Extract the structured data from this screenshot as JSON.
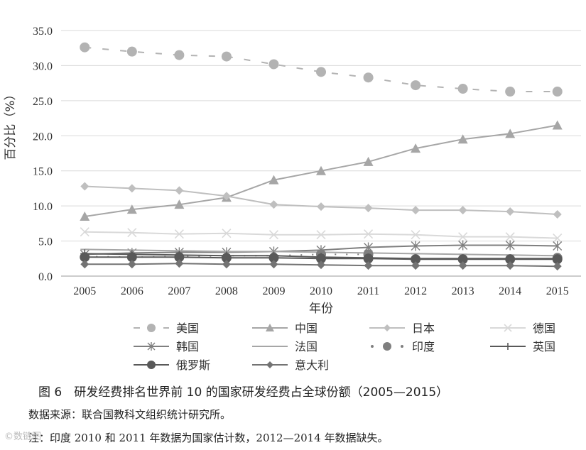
{
  "chart_data": {
    "type": "line",
    "ylabel": "百分比（%）",
    "xlabel": "年份",
    "ylim": [
      0,
      35
    ],
    "yticks": [
      "0.0",
      "5.0",
      "10.0",
      "15.0",
      "20.0",
      "25.0",
      "30.0",
      "35.0"
    ],
    "categories": [
      "2005",
      "2006",
      "2007",
      "2008",
      "2009",
      "2010",
      "2011",
      "2012",
      "2013",
      "2014",
      "2015"
    ],
    "legend_position": "bottom",
    "grid": "horizontal",
    "series": [
      {
        "name": "美国",
        "marker": "circle",
        "dash": "dash",
        "color": "#b3b3b3",
        "values": [
          32.6,
          32.0,
          31.5,
          31.3,
          30.2,
          29.1,
          28.3,
          27.2,
          26.7,
          26.3,
          26.3
        ]
      },
      {
        "name": "中国",
        "marker": "triangle",
        "dash": "solid",
        "color": "#a6a6a6",
        "values": [
          8.5,
          9.5,
          10.2,
          11.2,
          13.7,
          15.0,
          16.3,
          18.2,
          19.5,
          20.3,
          21.5
        ]
      },
      {
        "name": "日本",
        "marker": "diamond",
        "dash": "solid",
        "color": "#bfbfbf",
        "values": [
          12.8,
          12.5,
          12.2,
          11.4,
          10.2,
          9.9,
          9.7,
          9.4,
          9.4,
          9.2,
          8.8
        ]
      },
      {
        "name": "德国",
        "marker": "x",
        "dash": "solid",
        "color": "#d9d9d9",
        "values": [
          6.3,
          6.2,
          6.0,
          6.1,
          5.9,
          5.9,
          6.0,
          5.9,
          5.6,
          5.6,
          5.4
        ]
      },
      {
        "name": "韩国",
        "marker": "star",
        "dash": "solid",
        "color": "#7f7f7f",
        "values": [
          3.1,
          3.3,
          3.4,
          3.4,
          3.5,
          3.7,
          4.1,
          4.3,
          4.4,
          4.4,
          4.3
        ]
      },
      {
        "name": "法国",
        "marker": "dash",
        "dash": "solid",
        "color": "#a6a6a6",
        "values": [
          3.8,
          3.7,
          3.6,
          3.5,
          3.5,
          3.4,
          3.3,
          3.2,
          3.1,
          3.0,
          2.9
        ]
      },
      {
        "name": "印度",
        "marker": "circle",
        "dash": "dot",
        "color": "#7f7f7f",
        "values": [
          2.8,
          2.7,
          2.8,
          2.9,
          2.9,
          3.1,
          3.1,
          null,
          null,
          null,
          2.6
        ]
      },
      {
        "name": "英国",
        "marker": "plus",
        "dash": "solid",
        "color": "#595959",
        "values": [
          3.2,
          3.1,
          3.0,
          2.9,
          2.9,
          2.7,
          2.6,
          2.5,
          2.5,
          2.5,
          2.5
        ]
      },
      {
        "name": "俄罗斯",
        "marker": "circle",
        "dash": "solid",
        "color": "#595959",
        "values": [
          2.7,
          2.7,
          2.7,
          2.6,
          2.6,
          2.5,
          2.5,
          2.4,
          2.4,
          2.4,
          2.4
        ]
      },
      {
        "name": "意大利",
        "marker": "diamond",
        "dash": "solid",
        "color": "#737373",
        "values": [
          1.7,
          1.7,
          1.8,
          1.7,
          1.7,
          1.6,
          1.5,
          1.5,
          1.5,
          1.5,
          1.4
        ]
      }
    ]
  },
  "caption": "图 6　研发经费排名世界前 10 的国家研发经费占全球份额（2005—2015）",
  "source": "数据来源：联合国教科文组织统计研究所。",
  "footnote": "注：印度 2010 和 2011 年数据为国家估计数，2012—2014 年数据缺失。",
  "watermark": "©数链图"
}
